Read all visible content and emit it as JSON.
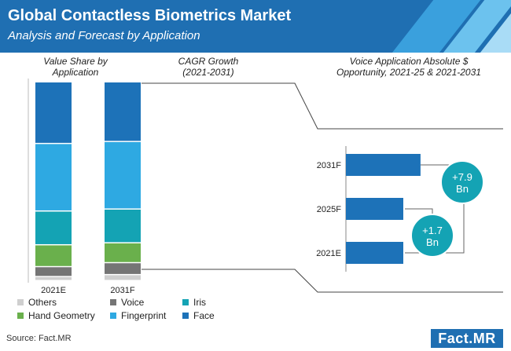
{
  "header": {
    "title": "Global Contactless Biometrics Market",
    "subtitle": "Analysis and Forecast by Application"
  },
  "labels": {
    "value_share": [
      "Value Share by",
      "Application"
    ],
    "cagr": [
      "CAGR Growth",
      "(2021-2031)"
    ],
    "opportunity": [
      "Voice Application Absolute $",
      "Opportunity, 2021-25 & 2021-2031"
    ]
  },
  "footer": {
    "source": "Source: Fact.MR",
    "logo": "Fact.MR"
  },
  "colors": {
    "Others": "#cfcfcf",
    "Voice": "#757575",
    "Iris": "#14a3b4",
    "Hand Geometry": "#6ab04c",
    "Fingerprint": "#2ea9e2",
    "Face": "#1d72b8",
    "header": "#1f6fb2"
  },
  "chart_data": [
    {
      "type": "bar",
      "stacked": true,
      "categories": [
        "2021E",
        "2031F"
      ],
      "series": [
        {
          "name": "Others",
          "values": [
            2,
            3
          ]
        },
        {
          "name": "Voice",
          "values": [
            5,
            6
          ]
        },
        {
          "name": "Hand Geometry",
          "values": [
            11,
            10
          ]
        },
        {
          "name": "Iris",
          "values": [
            17,
            17
          ]
        },
        {
          "name": "Fingerprint",
          "values": [
            34,
            34
          ]
        },
        {
          "name": "Face",
          "values": [
            31,
            30
          ]
        }
      ],
      "legend_order": [
        "Others",
        "Voice",
        "Iris",
        "Hand Geometry",
        "Fingerprint",
        "Face"
      ],
      "legend_position": "bottom",
      "ylim": [
        0,
        100
      ]
    },
    {
      "type": "bar",
      "orientation": "horizontal",
      "categories": [
        "2021E",
        "2025F",
        "2031F"
      ],
      "values": [
        1.0,
        1.0,
        1.3
      ],
      "annotations": [
        {
          "text": "+1.7 Bn",
          "between": [
            "2021E",
            "2025F"
          ]
        },
        {
          "text": "+7.9 Bn",
          "between": [
            "2025F",
            "2031F"
          ]
        }
      ]
    }
  ]
}
